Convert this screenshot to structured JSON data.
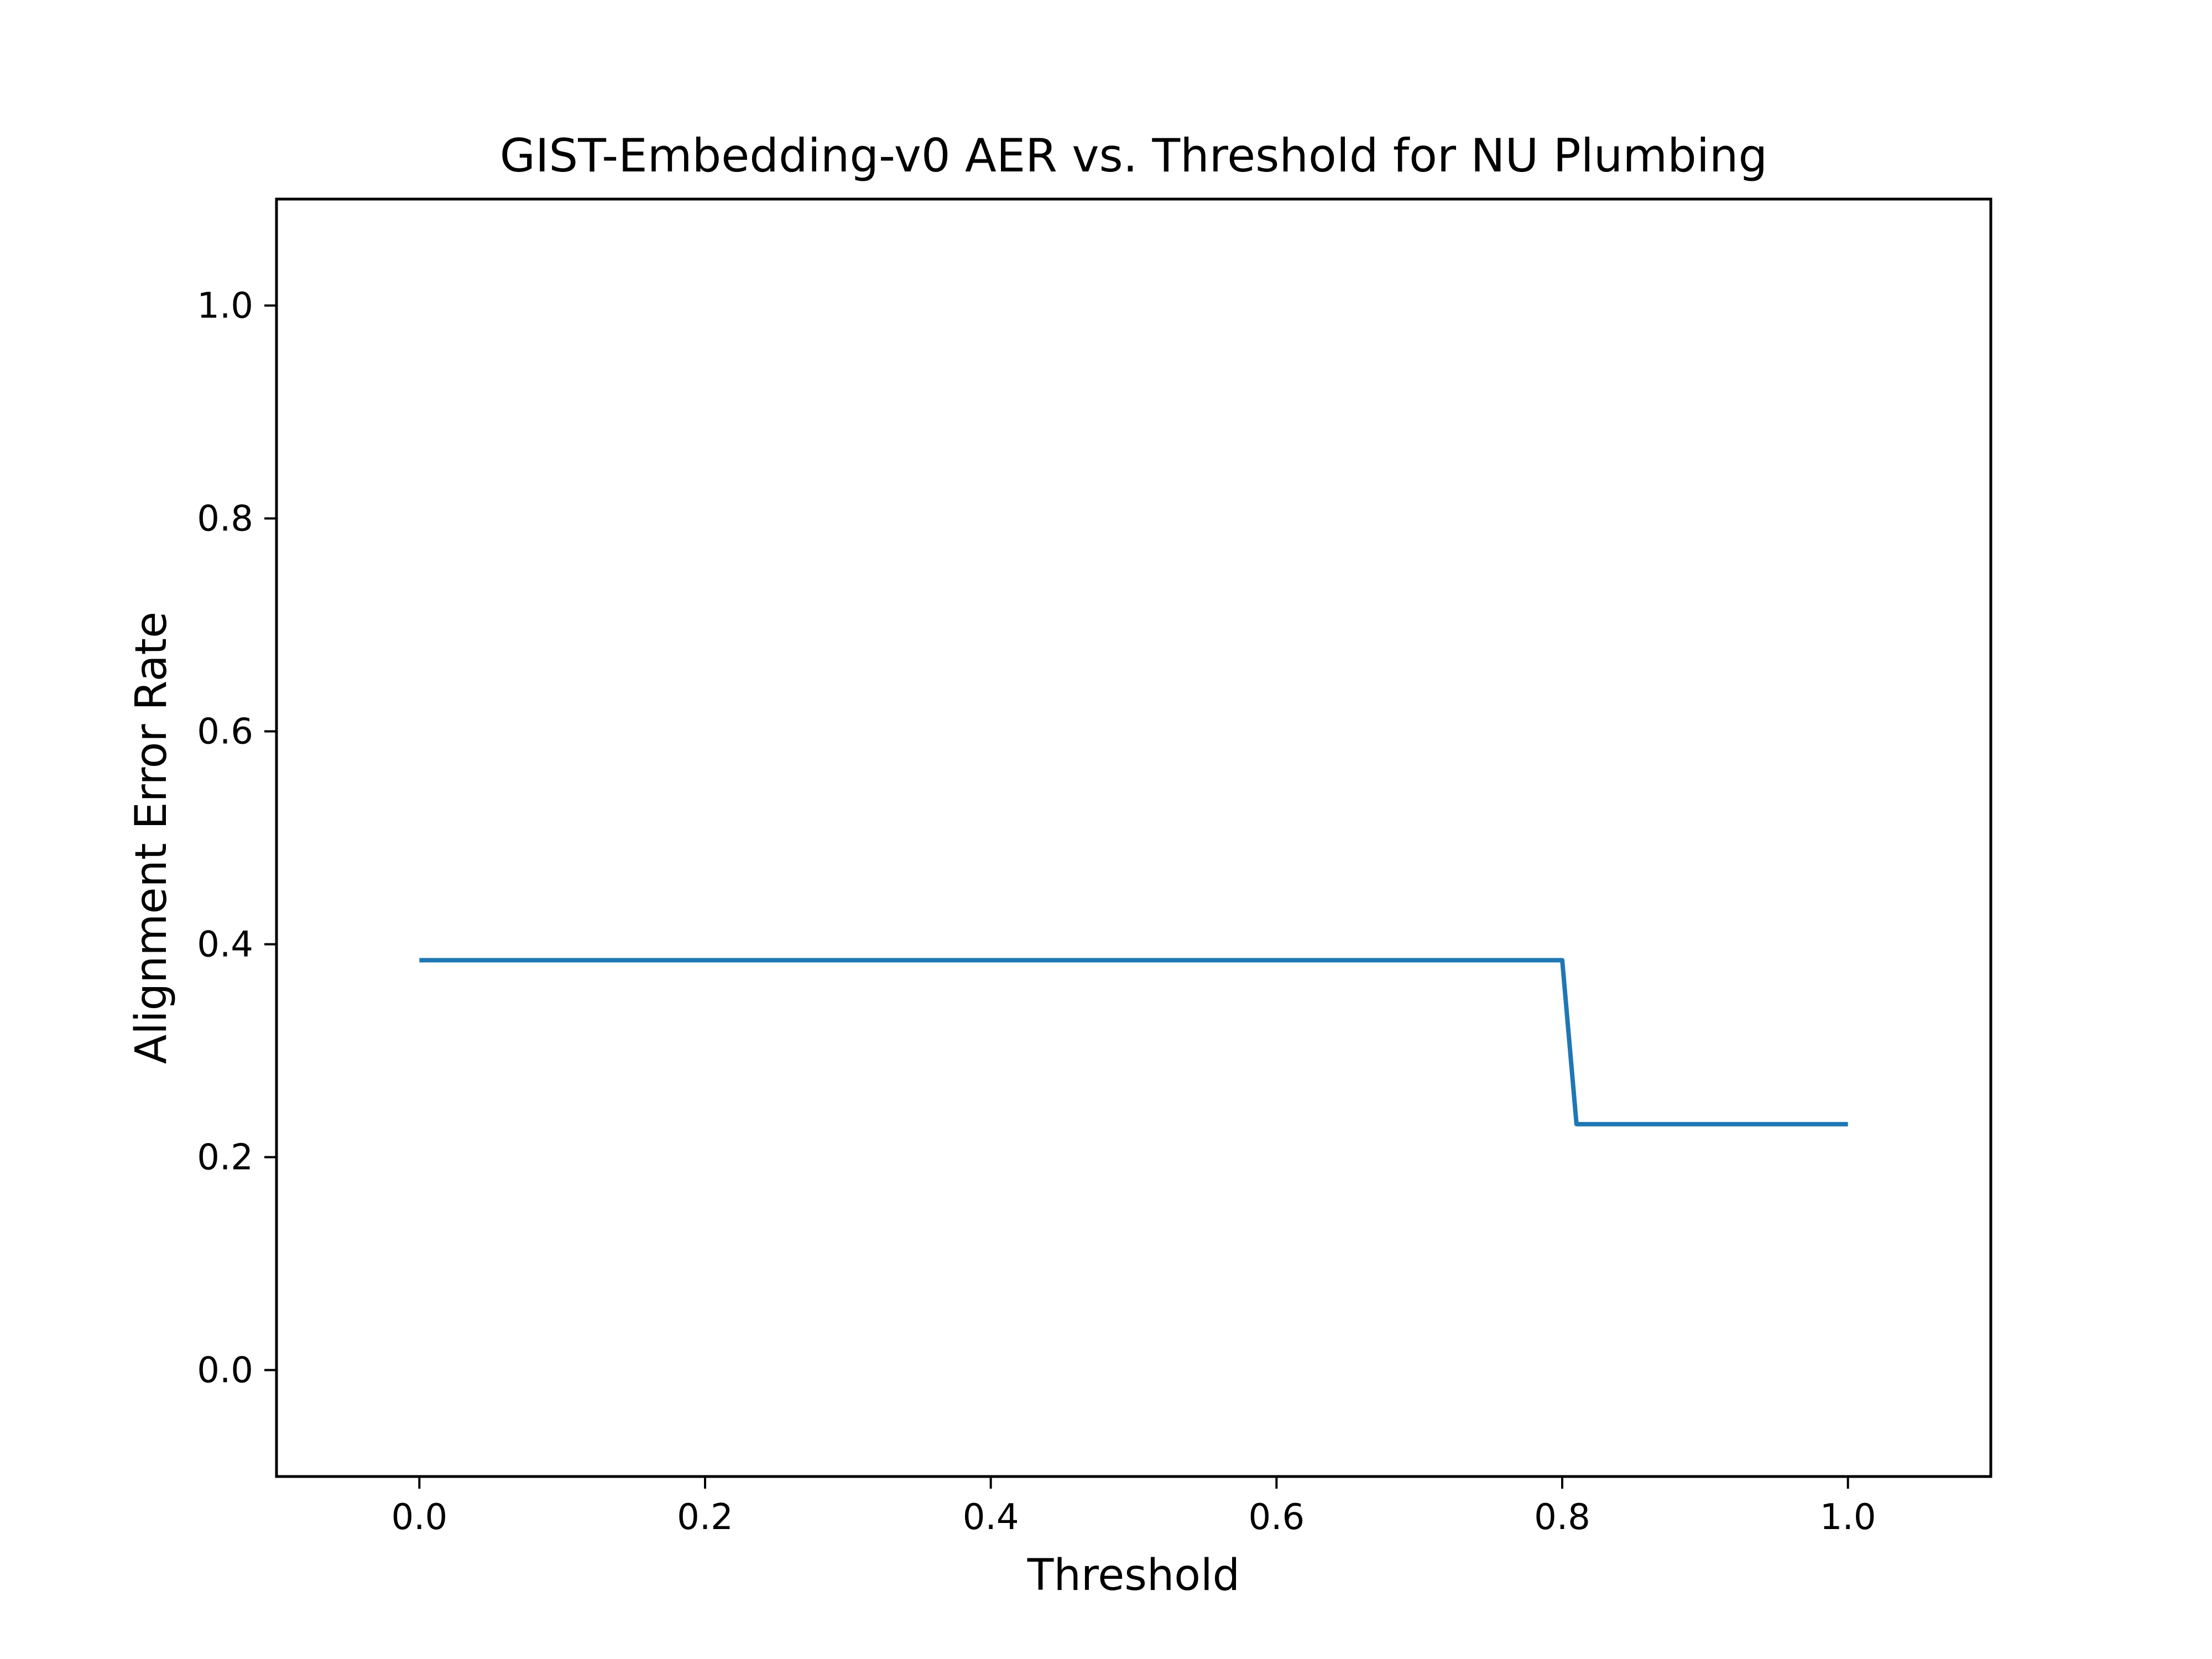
{
  "chart_data": {
    "type": "line",
    "title": "GIST-Embedding-v0 AER vs. Threshold for NU Plumbing",
    "xlabel": "Threshold",
    "ylabel": "Alignment Error Rate",
    "xlim": [
      -0.1,
      1.1
    ],
    "ylim": [
      -0.1,
      1.1
    ],
    "xticks": [
      0.0,
      0.2,
      0.4,
      0.6,
      0.8,
      1.0
    ],
    "xtick_labels": [
      "0.0",
      "0.2",
      "0.4",
      "0.6",
      "0.8",
      "1.0"
    ],
    "yticks": [
      0.0,
      0.2,
      0.4,
      0.6,
      0.8,
      1.0
    ],
    "ytick_labels": [
      "0.0",
      "0.2",
      "0.4",
      "0.6",
      "0.8",
      "1.0"
    ],
    "grid": false,
    "series": [
      {
        "color": "#1f77b4",
        "x": [
          0.0,
          0.01,
          0.02,
          0.03,
          0.04,
          0.05,
          0.06,
          0.07,
          0.08,
          0.09,
          0.1,
          0.11,
          0.12,
          0.13,
          0.14,
          0.15,
          0.16,
          0.17,
          0.18,
          0.19,
          0.2,
          0.21,
          0.22,
          0.23,
          0.24,
          0.25,
          0.26,
          0.27,
          0.28,
          0.29,
          0.3,
          0.31,
          0.32,
          0.33,
          0.34,
          0.35,
          0.36,
          0.37,
          0.38,
          0.39,
          0.4,
          0.41,
          0.42,
          0.43,
          0.44,
          0.45,
          0.46,
          0.47,
          0.48,
          0.49,
          0.5,
          0.51,
          0.52,
          0.53,
          0.54,
          0.55,
          0.56,
          0.57,
          0.58,
          0.59,
          0.6,
          0.61,
          0.62,
          0.63,
          0.64,
          0.65,
          0.66,
          0.67,
          0.68,
          0.69,
          0.7,
          0.71,
          0.72,
          0.73,
          0.74,
          0.75,
          0.76,
          0.77,
          0.78,
          0.79,
          0.8,
          0.81,
          0.82,
          0.83,
          0.84,
          0.85,
          0.86,
          0.87,
          0.88,
          0.89,
          0.9,
          0.91,
          0.92,
          0.93,
          0.94,
          0.95,
          0.96,
          0.97,
          0.98,
          0.99,
          1.0
        ],
        "y": [
          0.385,
          0.385,
          0.385,
          0.385,
          0.385,
          0.385,
          0.385,
          0.385,
          0.385,
          0.385,
          0.385,
          0.385,
          0.385,
          0.385,
          0.385,
          0.385,
          0.385,
          0.385,
          0.385,
          0.385,
          0.385,
          0.385,
          0.385,
          0.385,
          0.385,
          0.385,
          0.385,
          0.385,
          0.385,
          0.385,
          0.385,
          0.385,
          0.385,
          0.385,
          0.385,
          0.385,
          0.385,
          0.385,
          0.385,
          0.385,
          0.385,
          0.385,
          0.385,
          0.385,
          0.385,
          0.385,
          0.385,
          0.385,
          0.385,
          0.385,
          0.385,
          0.385,
          0.385,
          0.385,
          0.385,
          0.385,
          0.385,
          0.385,
          0.385,
          0.385,
          0.385,
          0.385,
          0.385,
          0.385,
          0.385,
          0.385,
          0.385,
          0.385,
          0.385,
          0.385,
          0.385,
          0.385,
          0.385,
          0.385,
          0.385,
          0.385,
          0.385,
          0.385,
          0.385,
          0.385,
          0.385,
          0.231,
          0.231,
          0.231,
          0.231,
          0.231,
          0.231,
          0.231,
          0.231,
          0.231,
          0.231,
          0.231,
          0.231,
          0.231,
          0.231,
          0.231,
          0.231,
          0.231,
          0.231,
          0.231,
          0.231
        ]
      }
    ]
  }
}
